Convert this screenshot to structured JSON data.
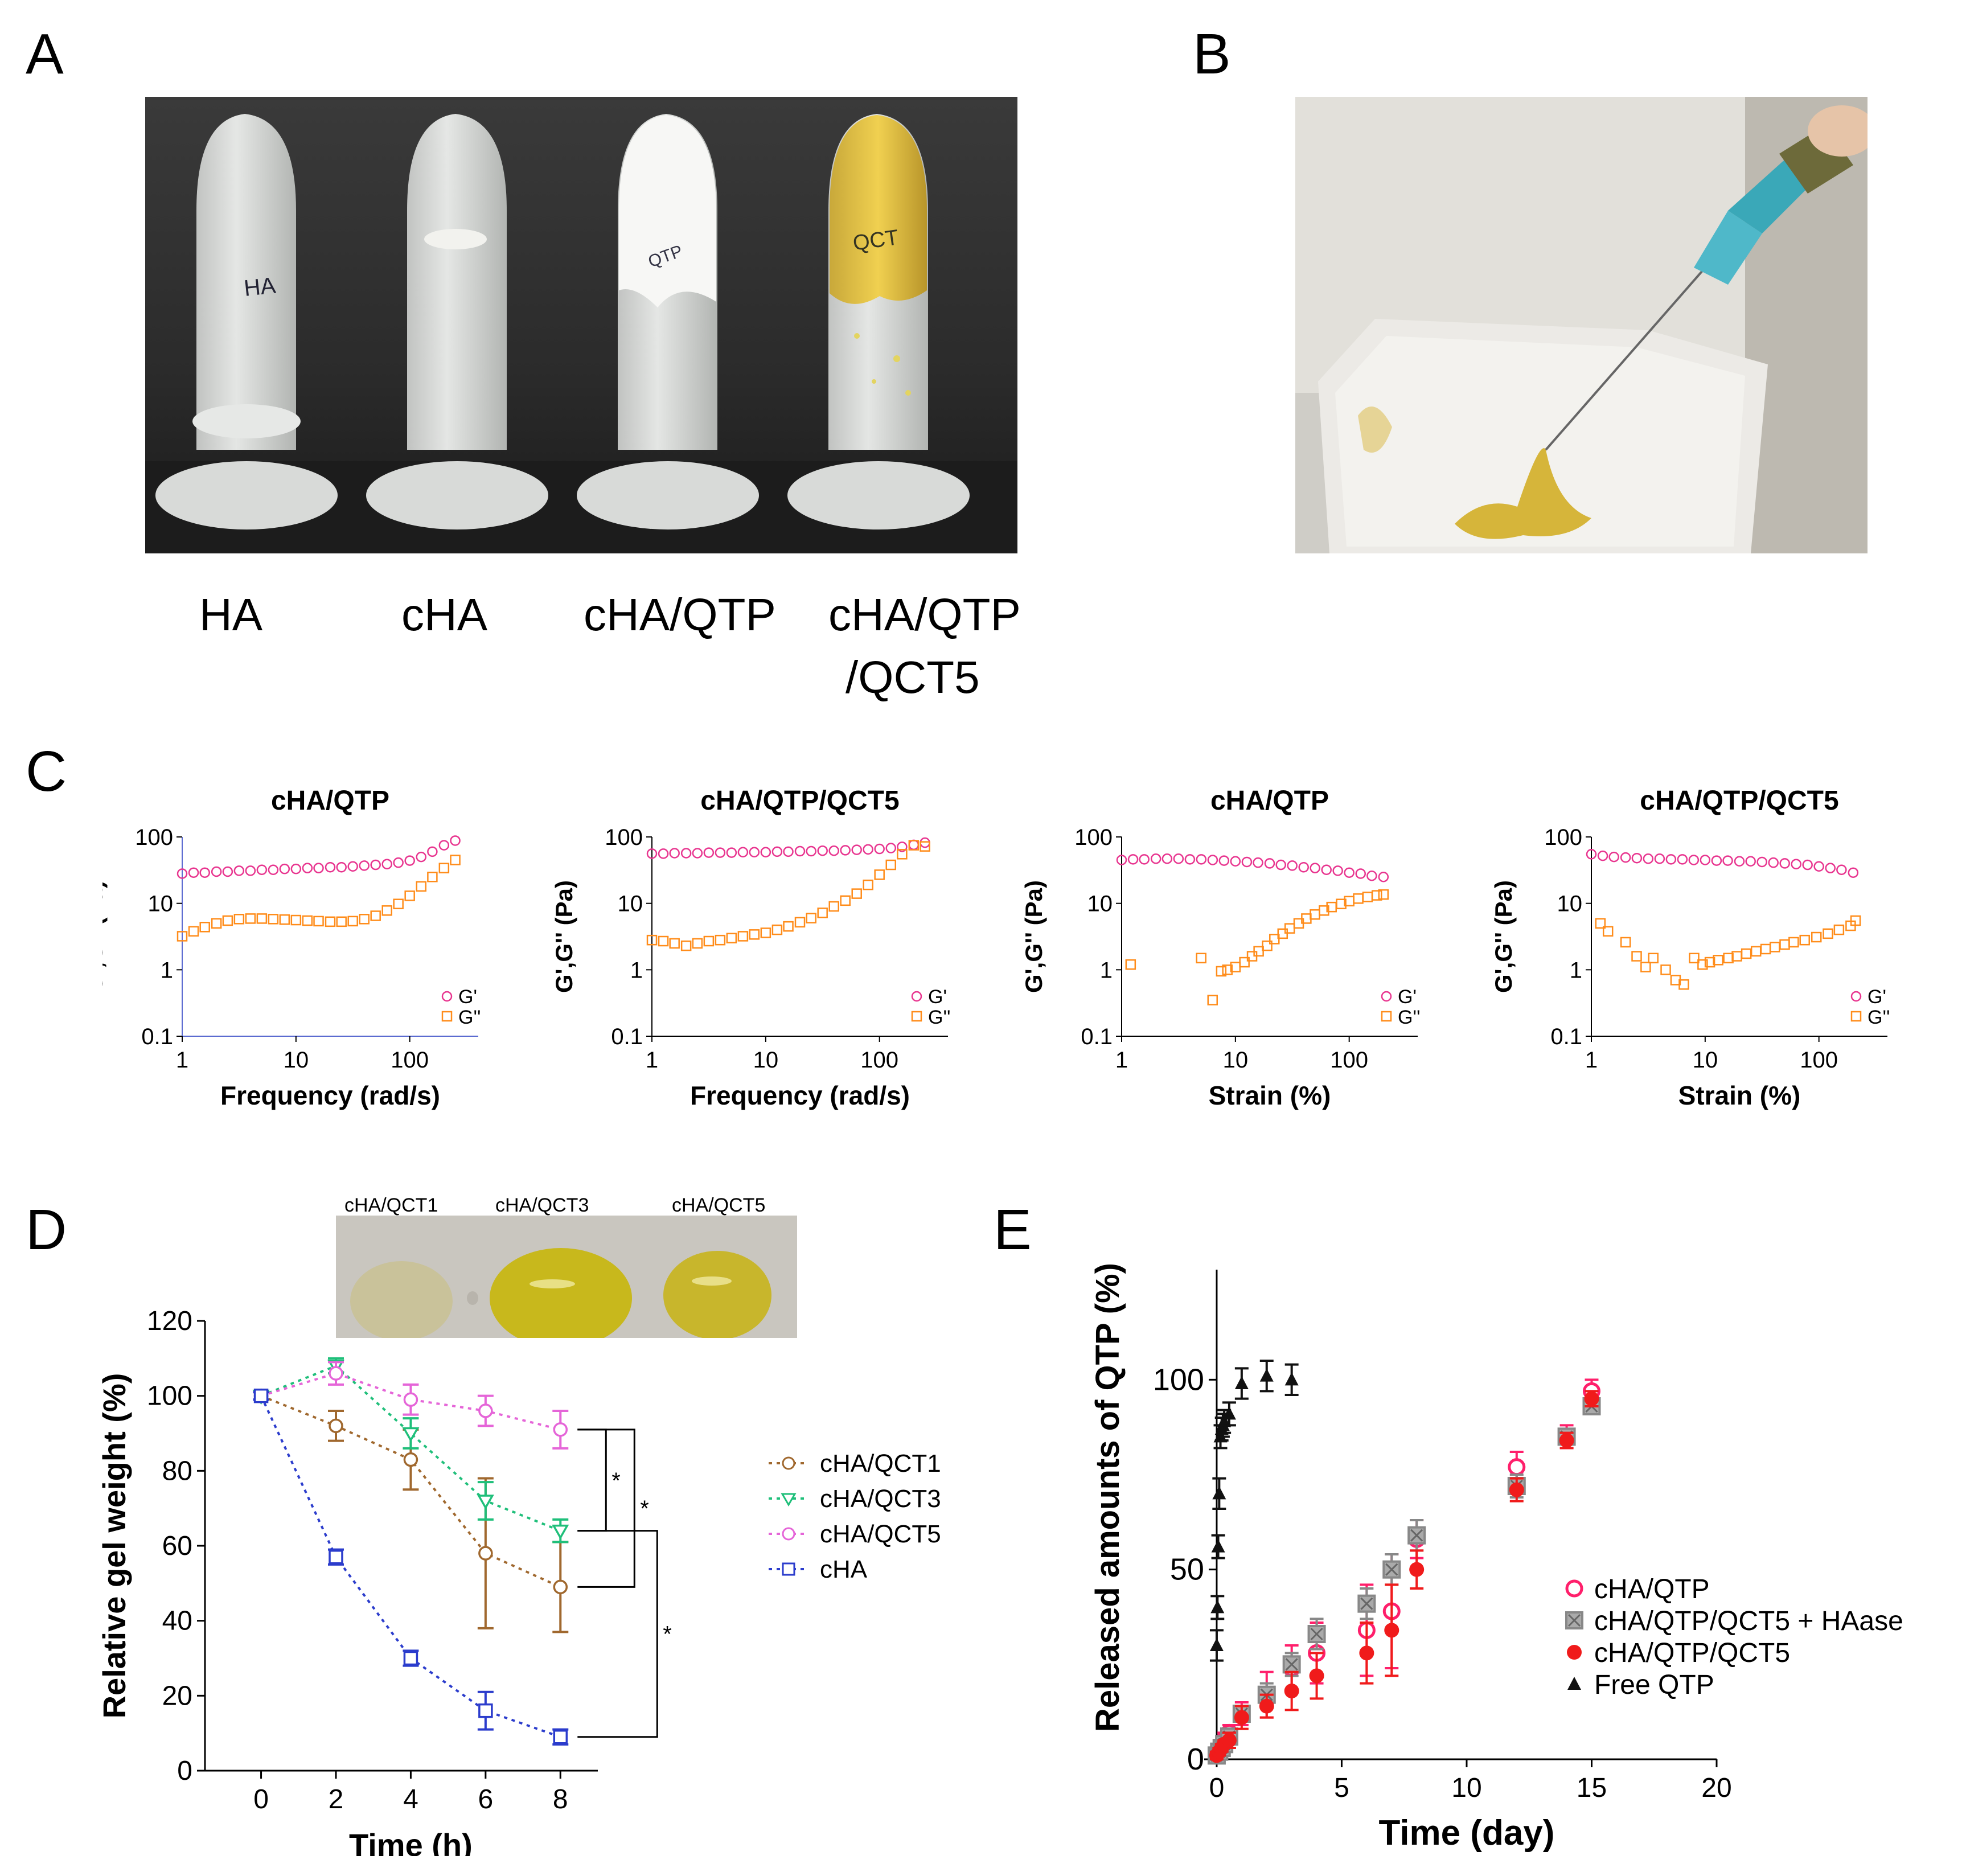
{
  "panels": {
    "A": {
      "letter": "A",
      "tube_labels": [
        "HA",
        "cHA",
        "cHA/QTP",
        "cHA/QTP",
        "/QCT5"
      ],
      "tube_handwriting": [
        "HA",
        "QTP",
        "QCT"
      ]
    },
    "B": {
      "letter": "B"
    },
    "C": {
      "letter": "C"
    },
    "D": {
      "letter": "D",
      "photo_labels": [
        "cHA/QCT1",
        "cHA/QCT3",
        "cHA/QCT5"
      ]
    },
    "E": {
      "letter": "E"
    }
  },
  "colors": {
    "Gprime": "#e8358f",
    "Gdouble": "#ff8c1a",
    "qct1": "#a0682e",
    "qct3": "#1fbf7a",
    "qct5": "#e565d8",
    "cha": "#2b3ccc",
    "e_chaqtp": "#ff1f6b",
    "e_hase": "#888888",
    "e_qct5": "#f01b1b",
    "e_free": "#111111"
  },
  "chart_data": [
    {
      "id": "C1",
      "type": "scatter",
      "title": "cHA/QTP",
      "xlabel": "Frequency (rad/s)",
      "ylabel": "G',G'' (Pa)",
      "xscale": "log",
      "yscale": "log",
      "xlim": [
        1,
        400
      ],
      "ylim": [
        0.1,
        100
      ],
      "xticks": [
        "1",
        "10",
        "100"
      ],
      "yticks": [
        "0.1",
        "1",
        "10",
        "100"
      ],
      "legend": [
        "G'",
        "G''"
      ],
      "legend_position": "bottom-right",
      "series": [
        {
          "name": "G'",
          "x": [
            1,
            1.26,
            1.58,
            2,
            2.51,
            3.16,
            3.98,
            5.01,
            6.31,
            7.94,
            10,
            12.6,
            15.8,
            20,
            25.1,
            31.6,
            39.8,
            50.1,
            63.1,
            79.4,
            100,
            126,
            158,
            200,
            251
          ],
          "y": [
            28,
            29,
            29,
            30,
            30,
            31,
            31,
            32,
            32,
            33,
            33,
            34,
            34,
            35,
            35,
            36,
            37,
            38,
            39,
            41,
            44,
            50,
            60,
            75,
            88
          ]
        },
        {
          "name": "G''",
          "x": [
            1,
            1.26,
            1.58,
            2,
            2.51,
            3.16,
            3.98,
            5.01,
            6.31,
            7.94,
            10,
            12.6,
            15.8,
            20,
            25.1,
            31.6,
            39.8,
            50.1,
            63.1,
            79.4,
            100,
            126,
            158,
            200,
            251
          ],
          "y": [
            3.2,
            3.8,
            4.4,
            5,
            5.5,
            5.8,
            5.9,
            5.9,
            5.8,
            5.7,
            5.6,
            5.5,
            5.4,
            5.3,
            5.3,
            5.4,
            5.8,
            6.5,
            7.8,
            9.8,
            13,
            18,
            25,
            34,
            45
          ]
        }
      ]
    },
    {
      "id": "C2",
      "type": "scatter",
      "title": "cHA/QTP/QCT5",
      "xlabel": "Frequency (rad/s)",
      "ylabel": "G',G'' (Pa)",
      "xscale": "log",
      "yscale": "log",
      "xlim": [
        1,
        400
      ],
      "ylim": [
        0.1,
        100
      ],
      "xticks": [
        "1",
        "10",
        "100"
      ],
      "yticks": [
        "0.1",
        "1",
        "10",
        "100"
      ],
      "legend": [
        "G'",
        "G''"
      ],
      "legend_position": "bottom-right",
      "series": [
        {
          "name": "G'",
          "x": [
            1,
            1.26,
            1.58,
            2,
            2.51,
            3.16,
            3.98,
            5.01,
            6.31,
            7.94,
            10,
            12.6,
            15.8,
            20,
            25.1,
            31.6,
            39.8,
            50.1,
            63.1,
            79.4,
            100,
            126,
            158,
            200,
            251
          ],
          "y": [
            56,
            56,
            57,
            57,
            57,
            58,
            58,
            58,
            59,
            59,
            59,
            60,
            60,
            61,
            61,
            62,
            62,
            63,
            64,
            65,
            66,
            68,
            71,
            76,
            82
          ]
        },
        {
          "name": "G''",
          "x": [
            1,
            1.26,
            1.58,
            2,
            2.51,
            3.16,
            3.98,
            5.01,
            6.31,
            7.94,
            10,
            12.6,
            15.8,
            20,
            25.1,
            31.6,
            39.8,
            50.1,
            63.1,
            79.4,
            100,
            126,
            158,
            200,
            251
          ],
          "y": [
            2.8,
            2.7,
            2.5,
            2.3,
            2.5,
            2.7,
            2.8,
            3,
            3.2,
            3.4,
            3.6,
            4,
            4.5,
            5.2,
            6,
            7.2,
            9,
            11,
            14,
            19,
            27,
            38,
            55,
            75,
            72
          ]
        }
      ]
    },
    {
      "id": "C3",
      "type": "scatter",
      "title": "cHA/QTP",
      "xlabel": "Strain (%)",
      "ylabel": "G',G'' (Pa)",
      "xscale": "log",
      "yscale": "log",
      "xlim": [
        1,
        400
      ],
      "ylim": [
        0.1,
        100
      ],
      "xticks": [
        "1",
        "10",
        "100"
      ],
      "yticks": [
        "0.1",
        "1",
        "10",
        "100"
      ],
      "legend": [
        "G'",
        "G''"
      ],
      "legend_position": "bottom-right",
      "series": [
        {
          "name": "G'",
          "x": [
            1,
            1.26,
            1.58,
            2,
            2.51,
            3.16,
            3.98,
            5.01,
            6.31,
            7.94,
            10,
            12.6,
            15.8,
            20,
            25.1,
            31.6,
            39.8,
            50.1,
            63.1,
            79.4,
            100,
            126,
            158,
            200
          ],
          "y": [
            45,
            46,
            46,
            47,
            47,
            47,
            46,
            46,
            45,
            44,
            43,
            42,
            41,
            40,
            38,
            37,
            35,
            34,
            32,
            31,
            29,
            28,
            26,
            25
          ]
        },
        {
          "name": "G''",
          "x": [
            1.2,
            5,
            6.3,
            7.5,
            8.5,
            10,
            12,
            14,
            16,
            19,
            22,
            26,
            30,
            36,
            42,
            50,
            60,
            70,
            85,
            100,
            120,
            145,
            175,
            200
          ],
          "y": [
            1.2,
            1.5,
            0.35,
            0.95,
            1,
            1.1,
            1.3,
            1.6,
            1.9,
            2.3,
            2.9,
            3.5,
            4.2,
            5,
            5.9,
            6.8,
            7.8,
            8.8,
            9.8,
            10.8,
            11.8,
            12.5,
            13.2,
            13.6
          ]
        }
      ]
    },
    {
      "id": "C4",
      "type": "scatter",
      "title": "cHA/QTP/QCT5",
      "xlabel": "Strain (%)",
      "ylabel": "G',G'' (Pa)",
      "xscale": "log",
      "yscale": "log",
      "xlim": [
        1,
        400
      ],
      "ylim": [
        0.1,
        100
      ],
      "xticks": [
        "1",
        "10",
        "100"
      ],
      "yticks": [
        "0.1",
        "1",
        "10",
        "100"
      ],
      "legend": [
        "G'",
        "G''"
      ],
      "legend_position": "bottom-right",
      "series": [
        {
          "name": "G'",
          "x": [
            1,
            1.26,
            1.58,
            2,
            2.51,
            3.16,
            3.98,
            5.01,
            6.31,
            7.94,
            10,
            12.6,
            15.8,
            20,
            25.1,
            31.6,
            39.8,
            50.1,
            63.1,
            79.4,
            100,
            126,
            158,
            200
          ],
          "y": [
            55,
            52,
            50,
            49,
            48,
            47,
            47,
            46,
            46,
            45,
            45,
            44,
            44,
            43,
            43,
            42,
            41,
            40,
            39,
            38,
            36,
            34,
            32,
            29
          ]
        },
        {
          "name": "G''",
          "x": [
            1.2,
            1.4,
            2,
            2.5,
            3,
            3.5,
            4.5,
            5.5,
            6.5,
            8,
            9.5,
            11,
            13,
            16,
            19,
            23,
            28,
            34,
            41,
            50,
            60,
            75,
            95,
            120,
            150,
            190,
            210
          ],
          "y": [
            5,
            3.8,
            2.6,
            1.6,
            1.1,
            1.5,
            1,
            0.7,
            0.6,
            1.5,
            1.2,
            1.3,
            1.4,
            1.5,
            1.6,
            1.75,
            1.9,
            2.05,
            2.2,
            2.4,
            2.6,
            2.8,
            3.1,
            3.5,
            4,
            4.6,
            5.5
          ]
        }
      ]
    },
    {
      "id": "D",
      "type": "line",
      "xlabel": "Time (h)",
      "ylabel": "Relative gel weight (%)",
      "xlim": [
        -1.5,
        9
      ],
      "ylim": [
        0,
        120
      ],
      "xticks": [
        "0",
        "2",
        "4",
        "6",
        "8"
      ],
      "yticks": [
        "0",
        "20",
        "40",
        "60",
        "80",
        "100",
        "120"
      ],
      "legend_position": "right",
      "significance": [
        "*",
        "*",
        "*"
      ],
      "series": [
        {
          "name": "cHA/QCT1",
          "x": [
            0,
            2,
            4,
            6,
            8
          ],
          "y": [
            100,
            92,
            83,
            58,
            49
          ],
          "err": [
            1,
            4,
            8,
            20,
            12
          ]
        },
        {
          "name": "cHA/QCT3",
          "x": [
            0,
            2,
            4,
            6,
            8
          ],
          "y": [
            100,
            108,
            90,
            72,
            64
          ],
          "err": [
            1,
            2,
            4,
            5,
            3
          ]
        },
        {
          "name": "cHA/QCT5",
          "x": [
            0,
            2,
            4,
            6,
            8
          ],
          "y": [
            100,
            106,
            99,
            96,
            91
          ],
          "err": [
            1,
            3,
            4,
            4,
            5
          ]
        },
        {
          "name": "cHA",
          "x": [
            0,
            2,
            4,
            6,
            8
          ],
          "y": [
            100,
            57,
            30,
            16,
            9
          ],
          "err": [
            1,
            2,
            2,
            5,
            2
          ]
        }
      ]
    },
    {
      "id": "E",
      "type": "scatter",
      "xlabel": "Time (day)",
      "ylabel": "Released amounts of QTP (%)",
      "xlim": [
        -0.5,
        20
      ],
      "ylim": [
        0,
        120
      ],
      "xticks": [
        "0",
        "5",
        "10",
        "15",
        "20"
      ],
      "yticks": [
        "0",
        "50",
        "100"
      ],
      "legend_position": "bottom-right",
      "series": [
        {
          "name": "cHA/QTP",
          "x": [
            0,
            0.1,
            0.2,
            0.3,
            0.5,
            1,
            2,
            3,
            4,
            6,
            7,
            8,
            12,
            14,
            15
          ],
          "y": [
            1,
            2,
            3,
            5,
            7,
            12,
            17,
            24,
            28,
            34,
            39,
            58,
            77,
            85,
            97
          ],
          "err": [
            1,
            1,
            1,
            2,
            2,
            3,
            6,
            6,
            8,
            12,
            15,
            5,
            4,
            3,
            3
          ]
        },
        {
          "name": "cHA/QTP/QCT5 + HAase",
          "x": [
            0,
            0.1,
            0.2,
            0.3,
            0.5,
            1,
            2,
            3,
            4,
            6,
            7,
            8,
            12,
            14,
            15
          ],
          "y": [
            1,
            2,
            3,
            4,
            6,
            12,
            17,
            25,
            33,
            41,
            50,
            59,
            72,
            85,
            93
          ],
          "err": [
            1,
            1,
            1,
            1,
            2,
            2,
            3,
            3,
            4,
            4,
            4,
            4,
            3,
            2,
            2
          ]
        },
        {
          "name": "cHA/QTP/QCT5",
          "x": [
            0,
            0.1,
            0.2,
            0.3,
            0.5,
            1,
            2,
            3,
            4,
            6,
            7,
            8,
            12,
            14,
            15
          ],
          "y": [
            1,
            2,
            3,
            4,
            5,
            11,
            14,
            18,
            22,
            28,
            34,
            50,
            71,
            84,
            95
          ],
          "err": [
            1,
            1,
            1,
            1,
            2,
            3,
            3,
            5,
            6,
            8,
            12,
            5,
            3,
            2,
            2
          ]
        },
        {
          "name": "Free QTP",
          "x": [
            0,
            0.03,
            0.06,
            0.1,
            0.15,
            0.2,
            0.25,
            0.3,
            0.5,
            1,
            2,
            3
          ],
          "y": [
            30,
            40,
            56,
            70,
            85,
            87,
            88,
            89,
            91,
            99,
            101,
            100
          ],
          "err": [
            4,
            3,
            3,
            4,
            3,
            3,
            3,
            3,
            3,
            4,
            4,
            4
          ]
        }
      ]
    }
  ]
}
